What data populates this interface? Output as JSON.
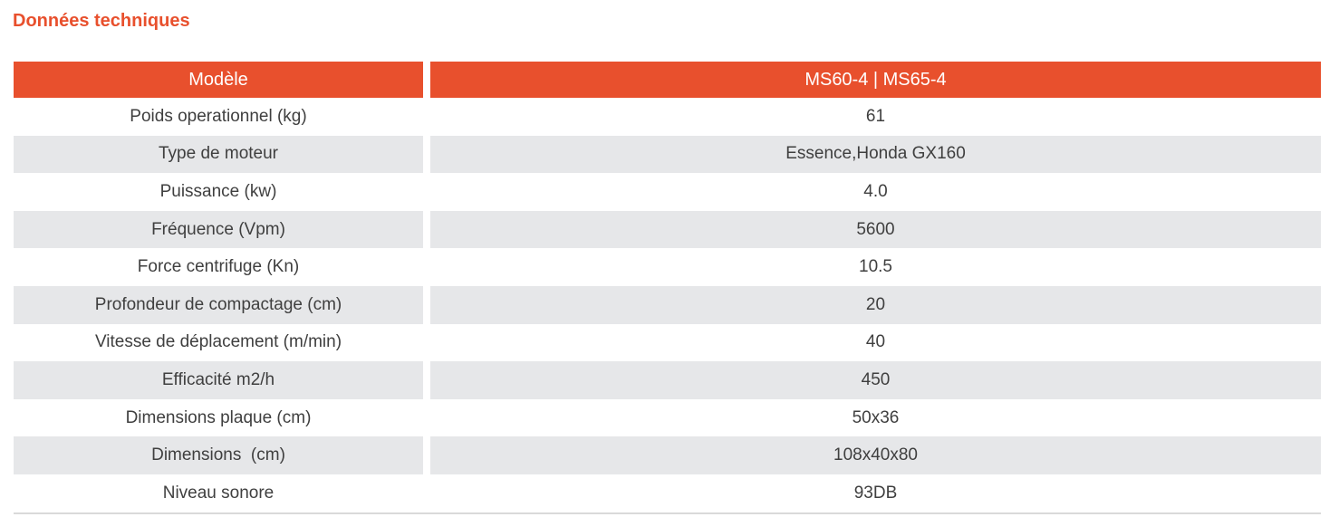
{
  "page": {
    "title": "Données techniques"
  },
  "table": {
    "header": {
      "model_label": "Modèle",
      "model_value": "MS60-4 | MS65-4"
    },
    "rows": [
      {
        "label": "Poids operationnel (kg)",
        "value": "61"
      },
      {
        "label": "Type de moteur",
        "value": "Essence,Honda GX160"
      },
      {
        "label": "Puissance (kw)",
        "value": "4.0"
      },
      {
        "label": "Fréquence (Vpm)",
        "value": "5600"
      },
      {
        "label": "Force centrifuge (Kn)",
        "value": "10.5"
      },
      {
        "label": "Profondeur de compactage (cm)",
        "value": "20"
      },
      {
        "label": "Vitesse de déplacement (m/min)",
        "value": "40"
      },
      {
        "label": "Efficacité m2/h",
        "value": "450"
      },
      {
        "label": "Dimensions plaque (cm)",
        "value": "50x36"
      },
      {
        "label": "Dimensions  (cm)",
        "value": "108x40x80"
      },
      {
        "label": "Niveau sonore",
        "value": "93DB"
      }
    ]
  },
  "colors": {
    "accent": "#e8502d",
    "row_alt": "#e6e7e9",
    "text": "#3f3f3f",
    "border": "#d9d9d9"
  }
}
